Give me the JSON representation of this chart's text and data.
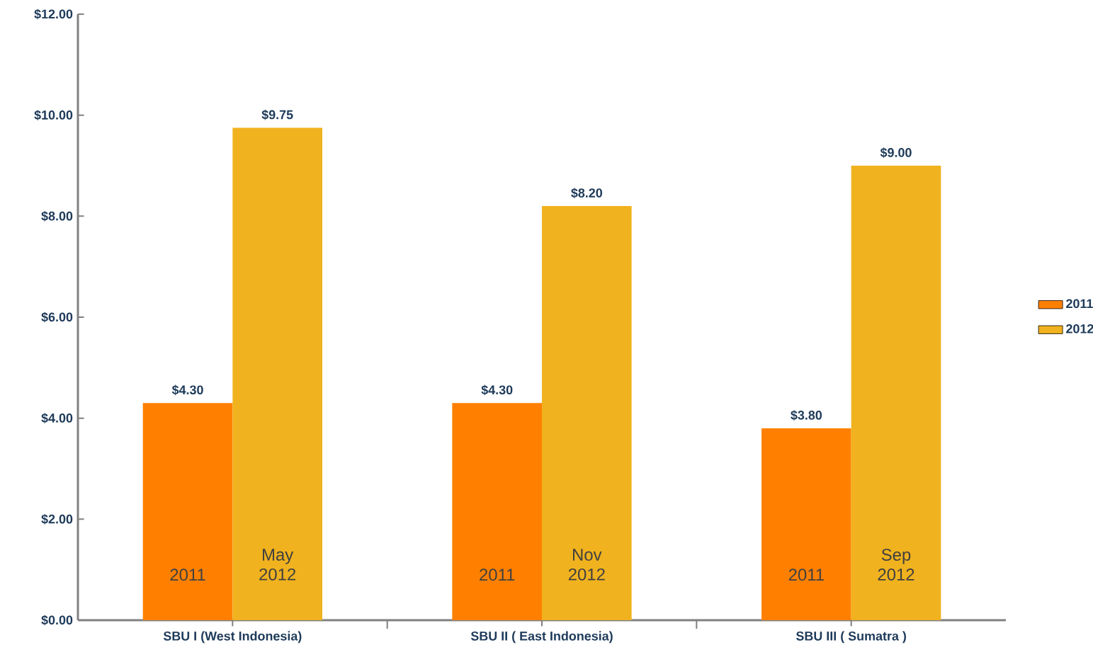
{
  "chart_data": {
    "type": "bar",
    "categories": [
      "SBU I (West Indonesia)",
      "SBU II ( East Indonesia)",
      "SBU III ( Sumatra )"
    ],
    "series": [
      {
        "name": "2011",
        "color": "#ff8000",
        "values": [
          4.3,
          4.3,
          3.8
        ],
        "value_labels": [
          "$4.30",
          "$4.30",
          "$3.80"
        ]
      },
      {
        "name": "2012",
        "color": "#f0b21e",
        "values": [
          9.75,
          8.2,
          9.0
        ],
        "value_labels": [
          "$9.75",
          "$8.20",
          "$9.00"
        ]
      }
    ],
    "ylim": [
      0,
      12
    ],
    "yticks": [
      {
        "value": 0,
        "label": "$0.00"
      },
      {
        "value": 2,
        "label": "$2.00"
      },
      {
        "value": 4,
        "label": "$4.00"
      },
      {
        "value": 6,
        "label": "$6.00"
      },
      {
        "value": 8,
        "label": "$8.00"
      },
      {
        "value": 10,
        "label": "$10.00"
      },
      {
        "value": 12,
        "label": "$12.00"
      }
    ],
    "annotations": [
      "2011",
      "May 2012",
      "2011",
      "Nov 2012",
      "2011",
      "Sep 2012"
    ],
    "grid": false,
    "legend": "right"
  }
}
